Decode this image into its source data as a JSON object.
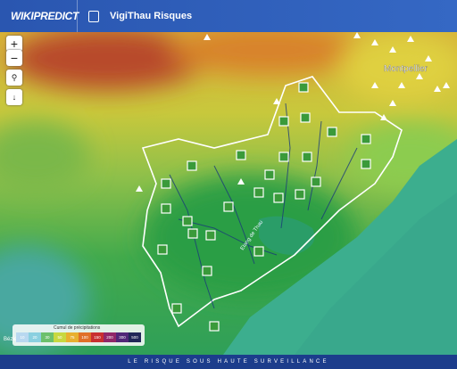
{
  "header": {
    "logo": "WIKIPREDICT",
    "title": "VigiThau Risques"
  },
  "map": {
    "zoom_in": "+",
    "zoom_out": "−",
    "places": [
      "Montpellier",
      "Béziers",
      "Etang de Thau"
    ]
  },
  "legend": {
    "title": "Cumul de précipitations",
    "labels": [
      "10",
      "20",
      "30",
      "50",
      "75",
      "100",
      "150",
      "200",
      "300",
      "500"
    ]
  },
  "footer": {
    "tagline": "LE RISQUE SOUS HAUTE SURVEILLANCE"
  }
}
